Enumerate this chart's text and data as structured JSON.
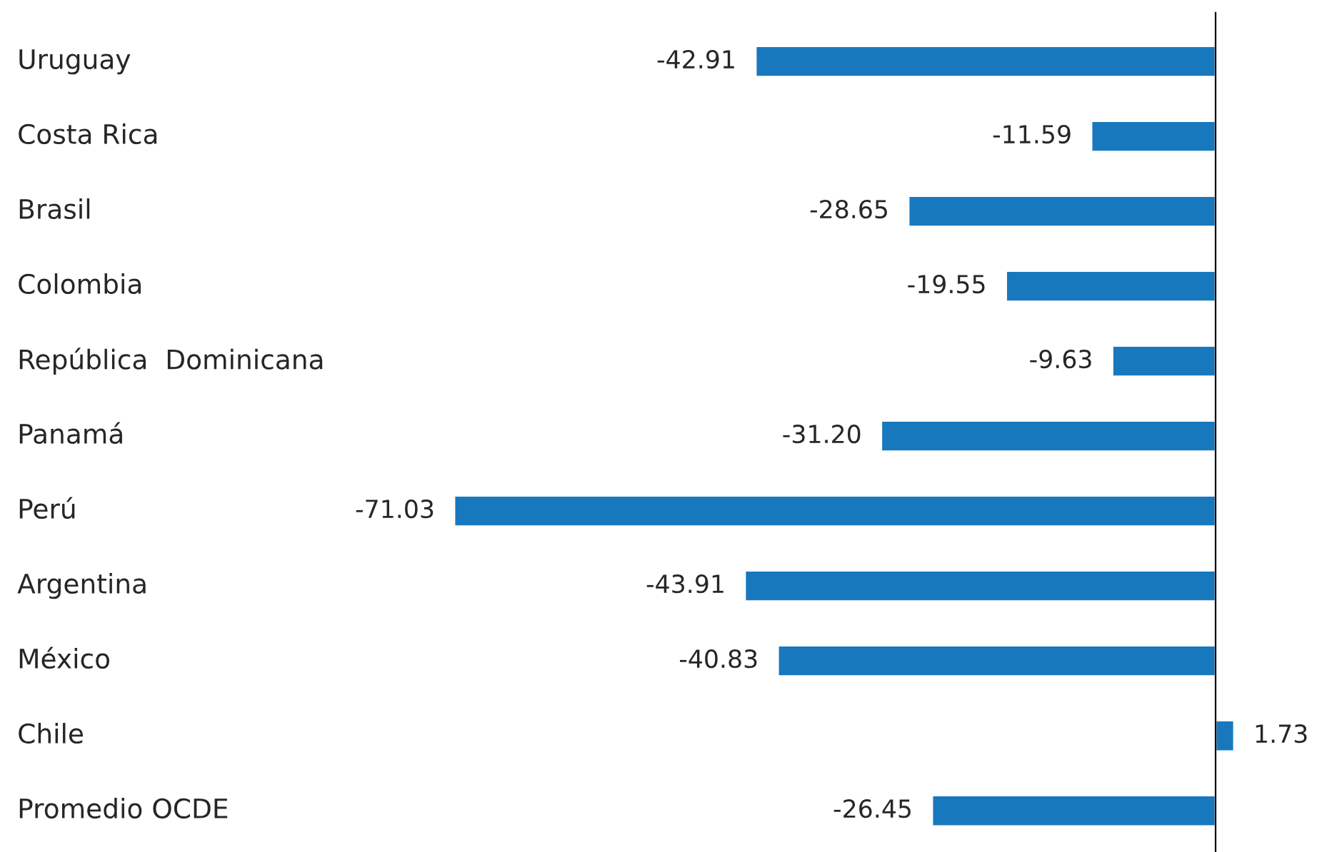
{
  "chart_data": {
    "type": "bar",
    "orientation": "horizontal",
    "categories": [
      "Uruguay",
      "Costa Rica",
      "Brasil",
      "Colombia",
      "República  Dominicana",
      "Panamá",
      "Perú",
      "Argentina",
      "México",
      "Chile",
      "Promedio OCDE"
    ],
    "values": [
      -42.91,
      -11.59,
      -28.65,
      -19.55,
      -9.63,
      -31.2,
      -71.03,
      -43.91,
      -40.83,
      1.73,
      -26.45
    ],
    "value_labels": [
      "-42.91",
      "-11.59",
      "-28.65",
      "-19.55",
      "-9.63",
      "-31.20",
      "-71.03",
      "-43.91",
      "-40.83",
      "1.73",
      "-26.45"
    ],
    "color": "#1878be",
    "tick_labels": "y",
    "grid": false,
    "legend": false
  }
}
